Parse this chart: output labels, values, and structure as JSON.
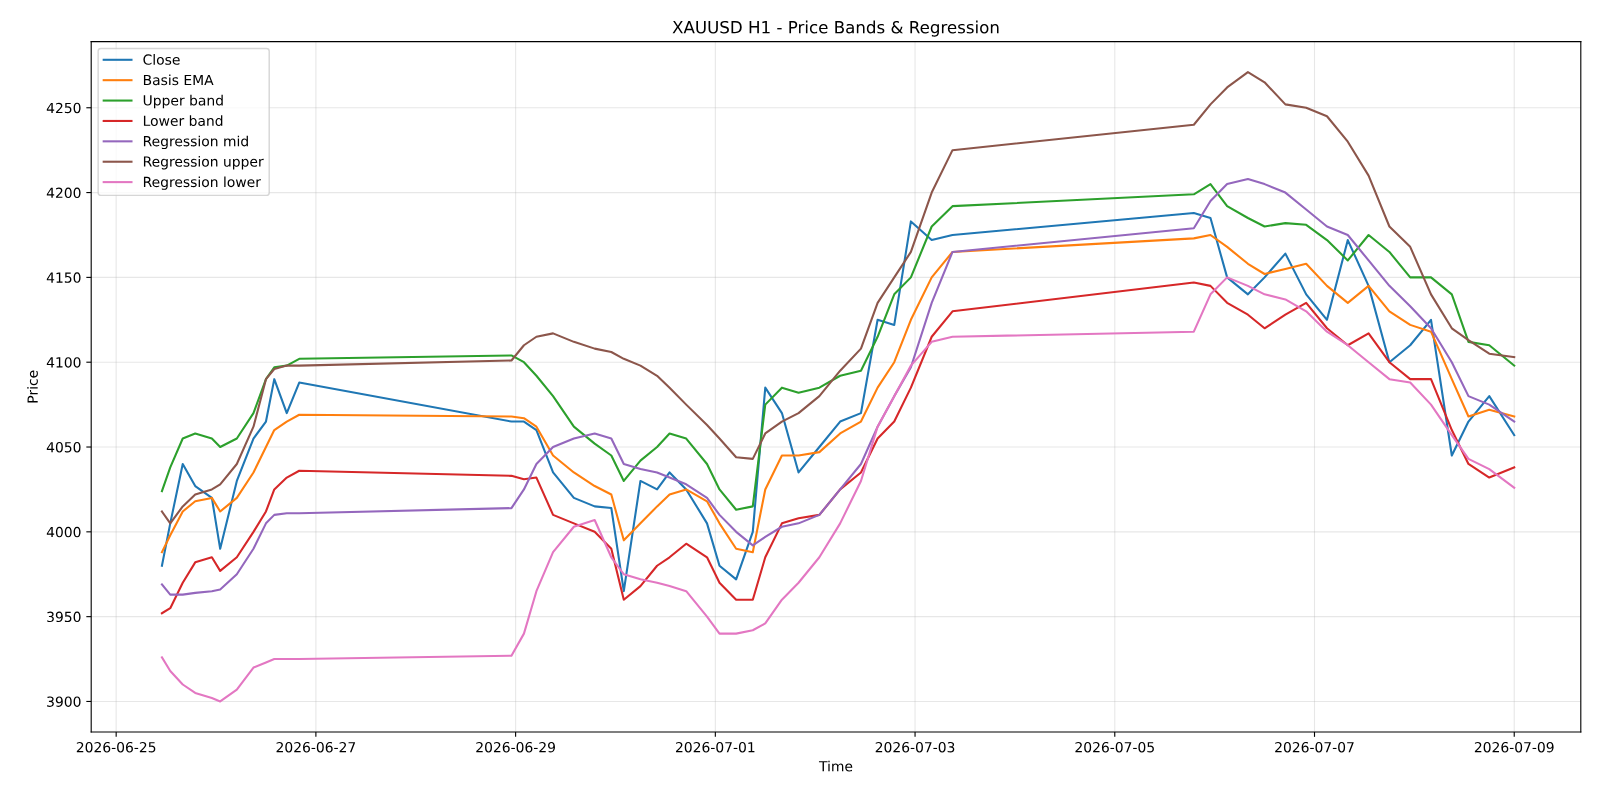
{
  "chart_data": {
    "type": "line",
    "title": "XAUUSD H1 - Price Bands & Regression",
    "xlabel": "Time",
    "ylabel": "Price",
    "x": [
      "2026-06-25T11:00",
      "2026-06-25T13:00",
      "2026-06-25T16:00",
      "2026-06-25T19:00",
      "2026-06-25T23:00",
      "2026-06-26T01:00",
      "2026-06-26T05:00",
      "2026-06-26T09:00",
      "2026-06-26T12:00",
      "2026-06-26T14:00",
      "2026-06-26T17:00",
      "2026-06-26T20:00",
      "2026-06-28T23:00",
      "2026-06-29T02:00",
      "2026-06-29T05:00",
      "2026-06-29T09:00",
      "2026-06-29T14:00",
      "2026-06-29T19:00",
      "2026-06-29T23:00",
      "2026-06-30T02:00",
      "2026-06-30T06:00",
      "2026-06-30T10:00",
      "2026-06-30T13:00",
      "2026-06-30T17:00",
      "2026-06-30T22:00",
      "2026-07-01T01:00",
      "2026-07-01T05:00",
      "2026-07-01T09:00",
      "2026-07-01T12:00",
      "2026-07-01T16:00",
      "2026-07-01T20:00",
      "2026-07-02T01:00",
      "2026-07-02T06:00",
      "2026-07-02T11:00",
      "2026-07-02T15:00",
      "2026-07-02T19:00",
      "2026-07-02T23:00",
      "2026-07-03T04:00",
      "2026-07-03T09:00",
      "2026-07-05T19:00",
      "2026-07-05T23:00",
      "2026-07-06T03:00",
      "2026-07-06T08:00",
      "2026-07-06T12:00",
      "2026-07-06T17:00",
      "2026-07-06T22:00",
      "2026-07-07T03:00",
      "2026-07-07T08:00",
      "2026-07-07T13:00",
      "2026-07-07T18:00",
      "2026-07-07T23:00",
      "2026-07-08T04:00",
      "2026-07-08T09:00",
      "2026-07-08T13:00",
      "2026-07-08T18:00",
      "2026-07-09T00:00"
    ],
    "series": [
      {
        "name": "Close",
        "color": "#1f77b4",
        "values": [
          3980,
          4005,
          4040,
          4027,
          4020,
          3990,
          4030,
          4055,
          4065,
          4090,
          4070,
          4088,
          4065,
          4065,
          4060,
          4035,
          4020,
          4015,
          4014,
          3965,
          4030,
          4025,
          4035,
          4025,
          4005,
          3980,
          3972,
          4000,
          4085,
          4070,
          4035,
          4050,
          4065,
          4070,
          4125,
          4122,
          4183,
          4172,
          4175,
          4188,
          4185,
          4150,
          4140,
          4150,
          4164,
          4140,
          4125,
          4172,
          4145,
          4100,
          4110,
          4125,
          4045,
          4065,
          4080,
          4057
        ]
      },
      {
        "name": "Basis EMA",
        "color": "#ff7f0e",
        "values": [
          3988,
          3998,
          4012,
          4018,
          4020,
          4012,
          4020,
          4035,
          4050,
          4060,
          4065,
          4069,
          4068,
          4067,
          4062,
          4045,
          4035,
          4027,
          4022,
          3995,
          4005,
          4015,
          4022,
          4025,
          4018,
          4005,
          3990,
          3988,
          4025,
          4045,
          4045,
          4047,
          4058,
          4065,
          4085,
          4100,
          4125,
          4150,
          4165,
          4173,
          4175,
          4168,
          4158,
          4152,
          4155,
          4158,
          4145,
          4135,
          4145,
          4130,
          4122,
          4118,
          4090,
          4068,
          4072,
          4068
        ]
      },
      {
        "name": "Upper band",
        "color": "#2ca02c",
        "values": [
          4024,
          4038,
          4055,
          4058,
          4055,
          4050,
          4055,
          4070,
          4090,
          4097,
          4098,
          4102,
          4104,
          4100,
          4092,
          4080,
          4062,
          4052,
          4045,
          4030,
          4042,
          4050,
          4058,
          4055,
          4040,
          4025,
          4013,
          4015,
          4075,
          4085,
          4082,
          4085,
          4092,
          4095,
          4115,
          4140,
          4150,
          4180,
          4192,
          4199,
          4205,
          4192,
          4185,
          4180,
          4182,
          4181,
          4172,
          4160,
          4175,
          4165,
          4150,
          4150,
          4140,
          4112,
          4110,
          4098
        ]
      },
      {
        "name": "Lower band",
        "color": "#d62728",
        "values": [
          3952,
          3955,
          3970,
          3982,
          3985,
          3977,
          3985,
          4000,
          4012,
          4025,
          4032,
          4036,
          4033,
          4031,
          4032,
          4010,
          4005,
          4000,
          3990,
          3960,
          3968,
          3980,
          3985,
          3993,
          3985,
          3970,
          3960,
          3960,
          3985,
          4005,
          4008,
          4010,
          4025,
          4035,
          4055,
          4065,
          4085,
          4115,
          4130,
          4147,
          4145,
          4135,
          4128,
          4120,
          4128,
          4135,
          4120,
          4110,
          4117,
          4100,
          4090,
          4090,
          4060,
          4040,
          4032,
          4038
        ]
      },
      {
        "name": "Regression mid",
        "color": "#9467bd",
        "values": [
          3969,
          3963,
          3963,
          3964,
          3965,
          3966,
          3975,
          3990,
          4005,
          4010,
          4011,
          4011,
          4014,
          4025,
          4040,
          4050,
          4055,
          4058,
          4055,
          4040,
          4037,
          4035,
          4032,
          4028,
          4020,
          4010,
          4000,
          3992,
          3997,
          4003,
          4005,
          4010,
          4025,
          4040,
          4062,
          4080,
          4097,
          4135,
          4165,
          4179,
          4195,
          4205,
          4208,
          4205,
          4200,
          4190,
          4180,
          4175,
          4160,
          4145,
          4133,
          4120,
          4100,
          4080,
          4075,
          4065
        ]
      },
      {
        "name": "Regression upper",
        "color": "#8c564b",
        "values": [
          4012,
          4005,
          4015,
          4022,
          4025,
          4028,
          4040,
          4062,
          4090,
          4096,
          4098,
          4098,
          4101,
          4110,
          4115,
          4117,
          4112,
          4108,
          4106,
          4102,
          4098,
          4092,
          4085,
          4075,
          4063,
          4055,
          4044,
          4043,
          4058,
          4065,
          4070,
          4080,
          4095,
          4108,
          4135,
          4150,
          4165,
          4200,
          4225,
          4240,
          4252,
          4262,
          4271,
          4265,
          4252,
          4250,
          4245,
          4230,
          4210,
          4180,
          4168,
          4140,
          4120,
          4113,
          4105,
          4103
        ]
      },
      {
        "name": "Regression lower",
        "color": "#e377c2",
        "values": [
          3926,
          3918,
          3910,
          3905,
          3902,
          3900,
          3907,
          3920,
          3923,
          3925,
          3925,
          3925,
          3927,
          3940,
          3965,
          3988,
          4003,
          4007,
          3985,
          3975,
          3972,
          3970,
          3968,
          3965,
          3950,
          3940,
          3940,
          3942,
          3946,
          3960,
          3970,
          3985,
          4005,
          4030,
          4062,
          4080,
          4098,
          4112,
          4115,
          4118,
          4140,
          4150,
          4145,
          4140,
          4137,
          4130,
          4118,
          4110,
          4100,
          4090,
          4088,
          4075,
          4057,
          4043,
          4037,
          4026
        ]
      }
    ],
    "xlim": [
      "2026-06-24T18:00",
      "2026-07-09T16:00"
    ],
    "xticks": [
      "2026-06-25",
      "2026-06-27",
      "2026-06-29",
      "2026-07-01",
      "2026-07-03",
      "2026-07-05",
      "2026-07-07",
      "2026-07-09"
    ],
    "ylim": [
      3882,
      4289
    ],
    "yticks": [
      3900,
      3950,
      4000,
      4050,
      4100,
      4150,
      4200,
      4250
    ],
    "grid": true,
    "legend": "top left",
    "marker": "none",
    "line_style": "solid"
  }
}
